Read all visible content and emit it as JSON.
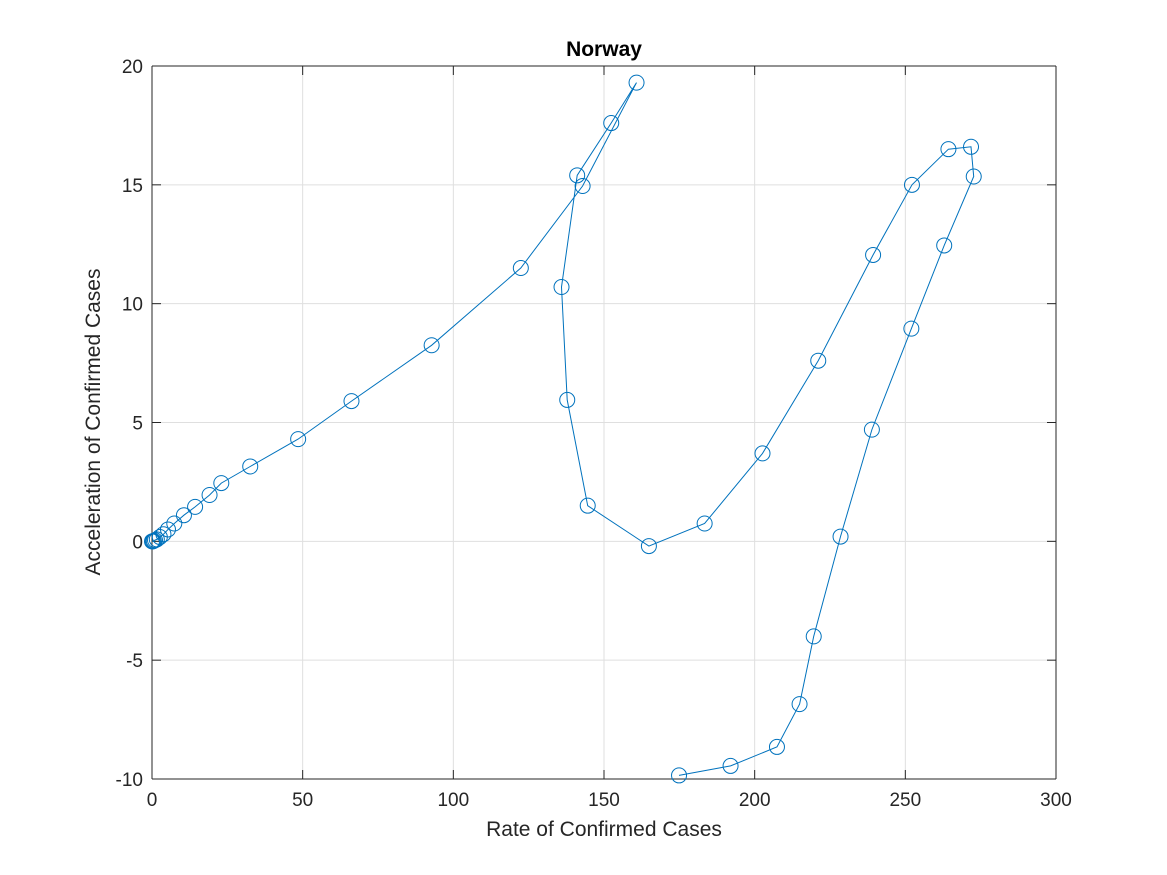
{
  "chart_data": {
    "type": "line",
    "title": "Norway",
    "xlabel": "Rate of Confirmed Cases",
    "ylabel": "Acceleration of Confirmed Cases",
    "xlim": [
      0,
      300
    ],
    "ylim": [
      -10,
      20
    ],
    "xticks": [
      0,
      50,
      100,
      150,
      200,
      250,
      300
    ],
    "yticks": [
      -10,
      -5,
      0,
      5,
      10,
      15,
      20
    ],
    "grid": true,
    "marker": "circle",
    "series_color": "#0072bd",
    "series": [
      {
        "x": [
          0,
          0.3,
          0.6,
          1.0,
          1.6,
          2.6,
          3.8,
          5.3,
          7.4,
          10.6,
          14.3,
          19.1,
          23.0,
          32.6,
          48.5,
          66.2,
          92.8,
          122.4,
          142.9,
          160.8,
          152.4,
          141.1,
          135.9,
          137.8,
          144.6,
          164.9,
          183.4,
          202.6,
          221.1,
          239.3,
          252.2,
          264.3,
          271.8,
          272.7,
          262.9,
          252.0,
          238.9,
          228.5,
          219.6,
          214.9,
          207.4,
          192.0,
          174.9
        ],
        "y": [
          0,
          0,
          0.02,
          0.05,
          0.08,
          0.18,
          0.3,
          0.5,
          0.75,
          1.1,
          1.45,
          1.95,
          2.45,
          3.15,
          4.3,
          5.9,
          8.25,
          11.5,
          14.95,
          19.3,
          17.6,
          15.4,
          10.7,
          5.95,
          1.5,
          -0.2,
          0.75,
          3.7,
          7.6,
          12.05,
          15.0,
          16.5,
          16.6,
          15.35,
          12.45,
          8.95,
          4.7,
          0.2,
          -4.0,
          -6.85,
          -8.65,
          -9.45,
          -9.85
        ]
      }
    ]
  }
}
